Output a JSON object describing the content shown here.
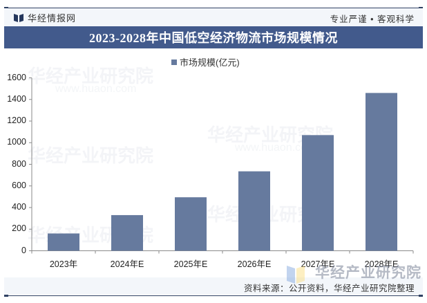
{
  "header": {
    "brand": "华经情报网",
    "slogan": "专业严谨 • 客观科学",
    "title": "2023-2028年中国低空经济物流市场规模情况"
  },
  "legend": {
    "label": "市场规模(亿元)"
  },
  "footer": {
    "source": "资料来源：公开资料，华经产业研究院整理"
  },
  "watermark": {
    "text": "华经产业研究院",
    "url": "www.huaon.com"
  },
  "colors": {
    "bar": "#667a9e",
    "title_bar": "#425a8c",
    "frame": "#2f4163"
  },
  "chart_data": {
    "type": "bar",
    "title": "2023-2028年中国低空经济物流市场规模情况",
    "categories": [
      "2023年",
      "2024年E",
      "2025年E",
      "2026年E",
      "2027年E",
      "2028年E"
    ],
    "series": [
      {
        "name": "市场规模(亿元)",
        "values": [
          160,
          330,
          495,
          735,
          1070,
          1460
        ]
      }
    ],
    "xlabel": "",
    "ylabel": "",
    "ylim": [
      0,
      1600
    ],
    "yticks": [
      0,
      200,
      400,
      600,
      800,
      1000,
      1200,
      1400,
      1600
    ],
    "grid": false,
    "legend_position": "top"
  }
}
